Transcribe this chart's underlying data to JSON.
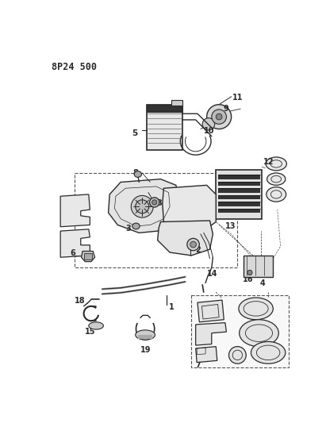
{
  "title": "8P24 500",
  "bg_color": "#ffffff",
  "line_color": "#2a2a2a",
  "fig_width": 4.11,
  "fig_height": 5.33,
  "dpi": 100
}
